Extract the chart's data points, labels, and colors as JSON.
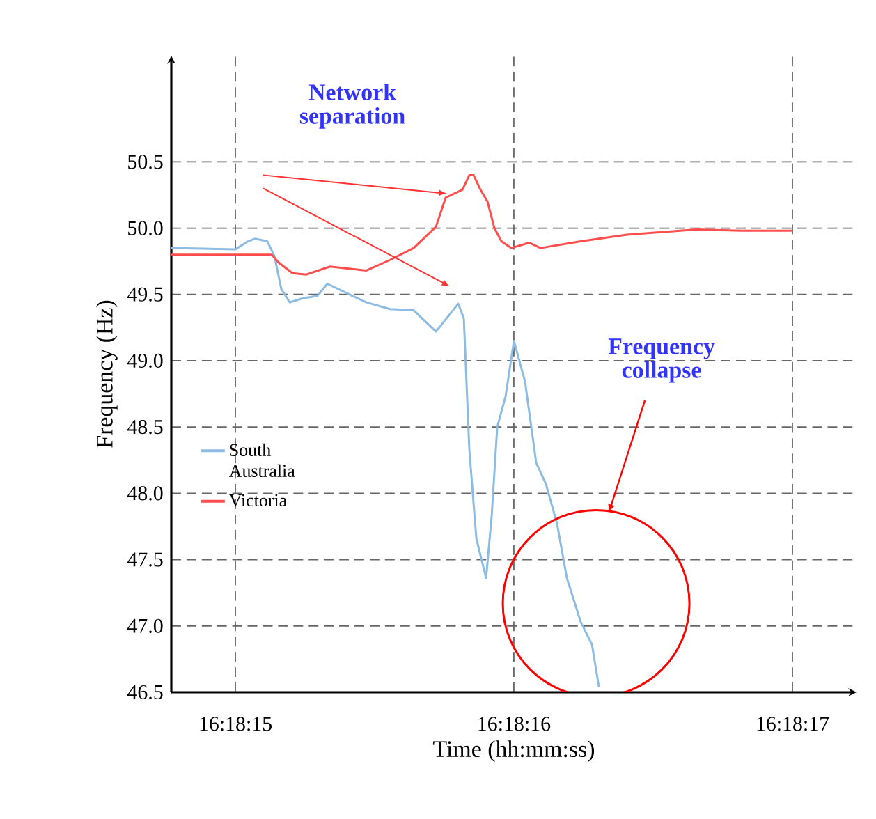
{
  "chart_data": {
    "type": "line",
    "xlabel": "Time (hh:mm:ss)",
    "ylabel": "Frequency (Hz)",
    "annotations": [
      "Network separation",
      "Frequency collapse"
    ],
    "xlim": [
      16.3041028,
      16.3047861
    ],
    "ylim": [
      46.5,
      51.3
    ],
    "xticks": [
      {
        "value": 16.3041667,
        "label": "16:18:15"
      },
      {
        "value": 16.3044444,
        "label": "16:18:16"
      },
      {
        "value": 16.3047222,
        "label": "16:18:17"
      }
    ],
    "yticks": [
      46.5,
      {
        "value": 47,
        "label": "47.0"
      },
      47.5,
      {
        "value": 48,
        "label": "48.0"
      },
      48.5,
      {
        "value": 49,
        "label": "49.0"
      },
      49.5,
      {
        "value": 50,
        "label": "50.0"
      },
      50.5
    ],
    "grid": true,
    "legend": "left",
    "marker": "none",
    "line_style": "solid",
    "series": [
      {
        "name": "South Australia",
        "color": "#8cbbe3",
        "x": [
          16.3041028,
          16.3041667,
          16.3041792,
          16.3041861,
          16.3041986,
          16.3042056,
          16.3042125,
          16.3042209,
          16.3042334,
          16.3042486,
          16.3042584,
          16.304275,
          16.3042973,
          16.3043209,
          16.3043445,
          16.3043667,
          16.3043889,
          16.3043945,
          16.3044,
          16.304407,
          16.3044167,
          16.3044223,
          16.3044278,
          16.3044361,
          16.3044445,
          16.3044556,
          16.3044667,
          16.3044764,
          16.3044875,
          16.3044973,
          16.3045111,
          16.3045223,
          16.3045292
        ],
        "values": [
          49.85,
          49.84,
          49.9,
          49.92,
          49.9,
          49.79,
          49.54,
          49.44,
          49.47,
          49.49,
          49.58,
          49.52,
          49.44,
          49.39,
          49.38,
          49.22,
          49.43,
          49.32,
          48.33,
          47.66,
          47.36,
          47.83,
          48.5,
          48.73,
          49.15,
          48.84,
          48.23,
          48.07,
          47.77,
          47.36,
          47.03,
          46.86,
          46.54
        ]
      },
      {
        "name": "Victoria",
        "color": "#ff4d4d",
        "x": [
          16.3041028,
          16.3042028,
          16.3042098,
          16.3042236,
          16.3042375,
          16.3042611,
          16.3042973,
          16.3043209,
          16.3043445,
          16.3043667,
          16.3043764,
          16.3043931,
          16.3044,
          16.3044042,
          16.3044111,
          16.3044181,
          16.304425,
          16.304432,
          16.3044417,
          16.3044598,
          16.3044709,
          16.3045111,
          16.304557,
          16.3046264,
          16.3046723,
          16.3047222
        ],
        "values": [
          49.8,
          49.8,
          49.74,
          49.66,
          49.65,
          49.71,
          49.68,
          49.76,
          49.85,
          50.01,
          50.23,
          50.29,
          50.4,
          50.4,
          50.29,
          50.2,
          50.0,
          49.9,
          49.85,
          49.89,
          49.85,
          49.9,
          49.95,
          49.99,
          49.98,
          49.98
        ]
      }
    ]
  }
}
